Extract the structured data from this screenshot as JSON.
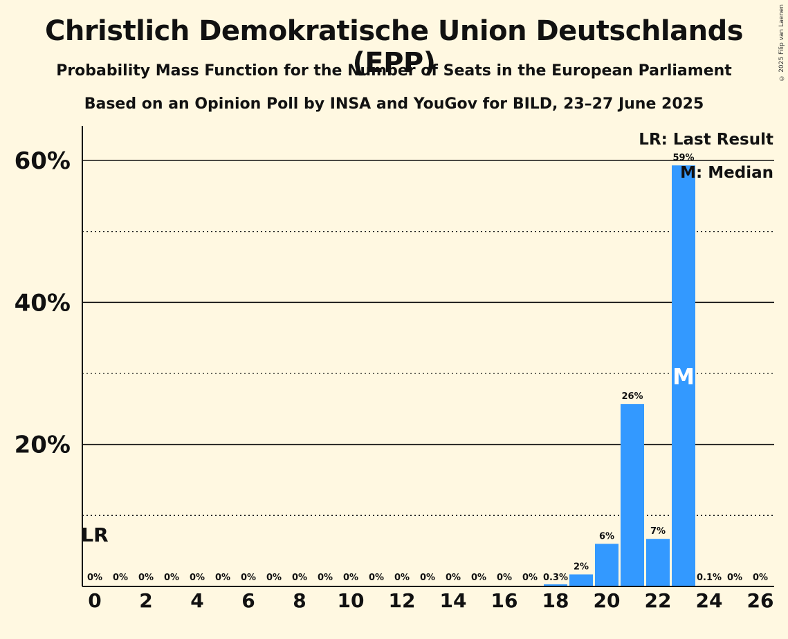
{
  "title": "Christlich Demokratische Union Deutschlands (EPP)",
  "subtitle1": "Probability Mass Function for the Number of Seats in the European Parliament",
  "subtitle2": "Based on an Opinion Poll by INSA and YouGov for BILD, 23–27 June 2025",
  "copyright": "© 2025 Filip van Laenen",
  "colors": {
    "background": "#FFF8E1",
    "bar": "#3399FF"
  },
  "chart_data": {
    "type": "bar",
    "x": [
      0,
      1,
      2,
      3,
      4,
      5,
      6,
      7,
      8,
      9,
      10,
      11,
      12,
      13,
      14,
      15,
      16,
      17,
      18,
      19,
      20,
      21,
      22,
      23,
      24,
      25,
      26
    ],
    "values": [
      0,
      0,
      0,
      0,
      0,
      0,
      0,
      0,
      0,
      0,
      0,
      0,
      0,
      0,
      0,
      0,
      0,
      0,
      0.3,
      1.7,
      6.0,
      25.7,
      6.7,
      59.3,
      0.1,
      0,
      0
    ],
    "bar_labels": [
      "0%",
      "0%",
      "0%",
      "0%",
      "0%",
      "0%",
      "0%",
      "0%",
      "0%",
      "0%",
      "0%",
      "0%",
      "0%",
      "0%",
      "0%",
      "0%",
      "0%",
      "0%",
      "0.3%",
      "2%",
      "6%",
      "26%",
      "7%",
      "59%",
      "0.1%",
      "0%",
      "0%"
    ],
    "xticks": [
      "0",
      "2",
      "4",
      "6",
      "8",
      "10",
      "12",
      "14",
      "16",
      "18",
      "20",
      "22",
      "24",
      "26"
    ],
    "yticks": [
      "20%",
      "40%",
      "60%"
    ],
    "ylim": [
      0,
      65
    ],
    "grid": "solid at 20% steps, dotted at 10% steps",
    "last_result": {
      "label": "LR",
      "x": 0
    },
    "median": {
      "label": "M",
      "x": 23
    },
    "legend": [
      "LR: Last Result",
      "M: Median"
    ],
    "legend_position": "top-right"
  }
}
